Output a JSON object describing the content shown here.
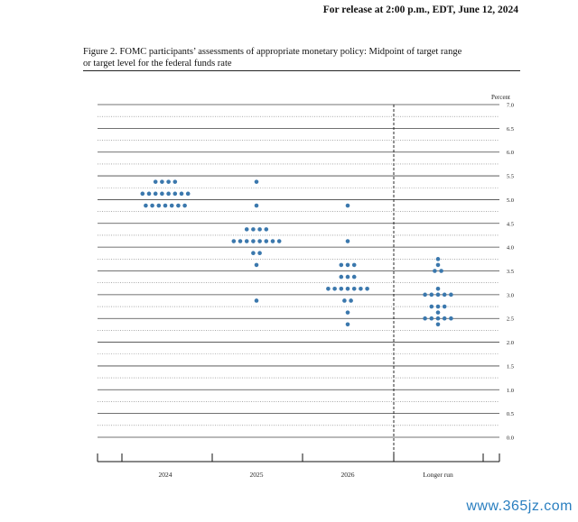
{
  "header": {
    "release_line": "For release at 2:00 p.m., EDT, June 12, 2024"
  },
  "figure": {
    "caption_line1": "Figure 2.  FOMC participants’ assessments of appropriate monetary policy: Midpoint of target range",
    "caption_line2": "or target level for the federal funds rate"
  },
  "watermark": "www.365jz.com",
  "chart_data": {
    "type": "scatter",
    "ylabel": "Percent",
    "ylim": [
      0,
      7
    ],
    "y_ticks": [
      "0.0",
      "0.5",
      "1.0",
      "1.5",
      "2.0",
      "2.5",
      "3.0",
      "3.5",
      "4.0",
      "4.5",
      "5.0",
      "5.5",
      "6.0",
      "6.5",
      "7.0"
    ],
    "grid": "solid lines at whole and half percents, dotted lines at quarter steps",
    "categories": [
      "2024",
      "2025",
      "2026",
      "Longer run"
    ],
    "separator_before": "Longer run",
    "dot_color": "#3b78ad",
    "series": [
      {
        "category": "2024",
        "points": [
          {
            "y": 5.375,
            "count": 4
          },
          {
            "y": 5.125,
            "count": 8
          },
          {
            "y": 4.875,
            "count": 7
          }
        ]
      },
      {
        "category": "2025",
        "points": [
          {
            "y": 5.375,
            "count": 1
          },
          {
            "y": 4.875,
            "count": 1
          },
          {
            "y": 4.375,
            "count": 4
          },
          {
            "y": 4.125,
            "count": 8
          },
          {
            "y": 3.875,
            "count": 2
          },
          {
            "y": 3.625,
            "count": 1
          },
          {
            "y": 2.875,
            "count": 1
          }
        ]
      },
      {
        "category": "2026",
        "points": [
          {
            "y": 4.875,
            "count": 1
          },
          {
            "y": 4.125,
            "count": 1
          },
          {
            "y": 3.625,
            "count": 3
          },
          {
            "y": 3.375,
            "count": 3
          },
          {
            "y": 3.125,
            "count": 7
          },
          {
            "y": 2.875,
            "count": 2
          },
          {
            "y": 2.625,
            "count": 1
          },
          {
            "y": 2.375,
            "count": 1
          }
        ]
      },
      {
        "category": "Longer run",
        "points": [
          {
            "y": 3.75,
            "count": 1
          },
          {
            "y": 3.625,
            "count": 1
          },
          {
            "y": 3.5,
            "count": 2
          },
          {
            "y": 3.125,
            "count": 1
          },
          {
            "y": 3.0,
            "count": 5
          },
          {
            "y": 2.75,
            "count": 3
          },
          {
            "y": 2.625,
            "count": 1
          },
          {
            "y": 2.5,
            "count": 5
          },
          {
            "y": 2.375,
            "count": 1
          }
        ]
      }
    ]
  }
}
